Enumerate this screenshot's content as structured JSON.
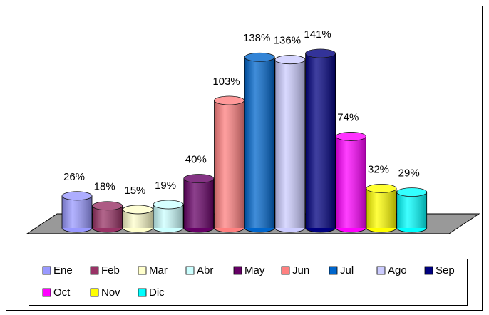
{
  "chart_data": {
    "type": "bar3d",
    "categories": [
      "Ene",
      "Feb",
      "Mar",
      "Abr",
      "May",
      "Jun",
      "Jul",
      "Ago",
      "Sep",
      "Oct",
      "Nov",
      "Dic"
    ],
    "values": [
      26,
      18,
      15,
      19,
      40,
      103,
      138,
      136,
      141,
      74,
      32,
      29
    ],
    "value_labels": [
      "26%",
      "18%",
      "15%",
      "19%",
      "40%",
      "103%",
      "138%",
      "136%",
      "141%",
      "74%",
      "32%",
      "29%"
    ],
    "colors": [
      "#9999ff",
      "#993366",
      "#ffffcc",
      "#ccffff",
      "#660066",
      "#ff8080",
      "#0066cc",
      "#ccccff",
      "#000080",
      "#ff00ff",
      "#ffff00",
      "#00ffff"
    ],
    "legend": "bottom"
  }
}
